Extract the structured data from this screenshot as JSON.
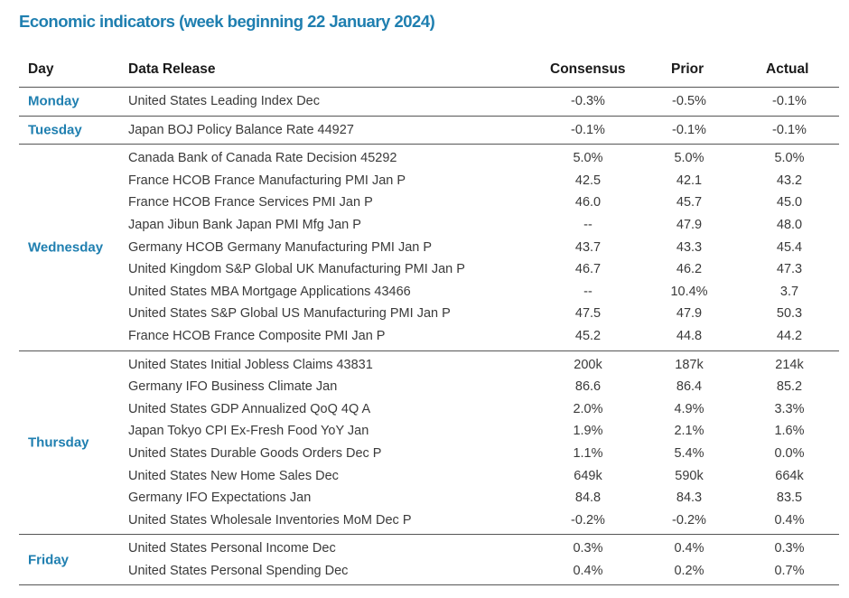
{
  "title": "Economic indicators (week beginning 22 January 2024)",
  "headers": {
    "day": "Day",
    "release": "Data Release",
    "consensus": "Consensus",
    "prior": "Prior",
    "actual": "Actual"
  },
  "groups": [
    {
      "day": "Monday",
      "rows": [
        {
          "release": "United States Leading Index Dec",
          "consensus": "-0.3%",
          "prior": "-0.5%",
          "actual": "-0.1%"
        }
      ]
    },
    {
      "day": "Tuesday",
      "rows": [
        {
          "release": "Japan BOJ Policy Balance Rate 44927",
          "consensus": "-0.1%",
          "prior": "-0.1%",
          "actual": "-0.1%"
        }
      ]
    },
    {
      "day": "Wednesday",
      "rows": [
        {
          "release": "Canada Bank of Canada Rate Decision 45292",
          "consensus": "5.0%",
          "prior": "5.0%",
          "actual": "5.0%"
        },
        {
          "release": "France HCOB France Manufacturing PMI Jan P",
          "consensus": "42.5",
          "prior": "42.1",
          "actual": "43.2"
        },
        {
          "release": "France HCOB France Services PMI Jan P",
          "consensus": "46.0",
          "prior": "45.7",
          "actual": "45.0"
        },
        {
          "release": "Japan Jibun Bank Japan PMI Mfg Jan P",
          "consensus": "--",
          "prior": "47.9",
          "actual": "48.0"
        },
        {
          "release": "Germany HCOB Germany Manufacturing PMI Jan P",
          "consensus": "43.7",
          "prior": "43.3",
          "actual": "45.4"
        },
        {
          "release": "United Kingdom S&P Global UK Manufacturing PMI Jan P",
          "consensus": "46.7",
          "prior": "46.2",
          "actual": "47.3"
        },
        {
          "release": "United States MBA Mortgage Applications 43466",
          "consensus": "--",
          "prior": "10.4%",
          "actual": "3.7"
        },
        {
          "release": "United States S&P Global US Manufacturing PMI Jan P",
          "consensus": "47.5",
          "prior": "47.9",
          "actual": "50.3"
        },
        {
          "release": "France HCOB France Composite PMI Jan P",
          "consensus": "45.2",
          "prior": "44.8",
          "actual": "44.2"
        }
      ]
    },
    {
      "day": "Thursday",
      "rows": [
        {
          "release": "United States Initial Jobless Claims 43831",
          "consensus": "200k",
          "prior": "187k",
          "actual": "214k"
        },
        {
          "release": "Germany IFO Business Climate Jan",
          "consensus": "86.6",
          "prior": "86.4",
          "actual": "85.2"
        },
        {
          "release": "United States GDP Annualized QoQ 4Q A",
          "consensus": "2.0%",
          "prior": "4.9%",
          "actual": "3.3%"
        },
        {
          "release": "Japan Tokyo CPI Ex-Fresh Food YoY Jan",
          "consensus": "1.9%",
          "prior": "2.1%",
          "actual": "1.6%"
        },
        {
          "release": "United States Durable Goods Orders Dec P",
          "consensus": "1.1%",
          "prior": "5.4%",
          "actual": "0.0%"
        },
        {
          "release": "United States New Home Sales Dec",
          "consensus": "649k",
          "prior": "590k",
          "actual": "664k"
        },
        {
          "release": "Germany IFO Expectations Jan",
          "consensus": "84.8",
          "prior": "84.3",
          "actual": "83.5"
        },
        {
          "release": "United States Wholesale Inventories MoM Dec P",
          "consensus": "-0.2%",
          "prior": "-0.2%",
          "actual": "0.4%"
        }
      ]
    },
    {
      "day": "Friday",
      "rows": [
        {
          "release": "United States Personal Income Dec",
          "consensus": "0.3%",
          "prior": "0.4%",
          "actual": "0.3%"
        },
        {
          "release": "United States Personal Spending Dec",
          "consensus": "0.4%",
          "prior": "0.2%",
          "actual": "0.7%"
        }
      ]
    }
  ]
}
